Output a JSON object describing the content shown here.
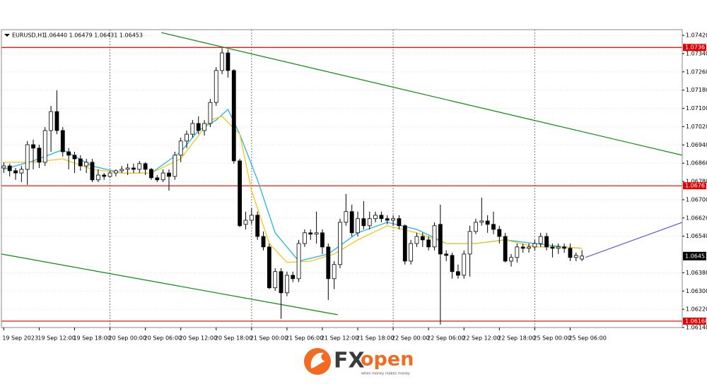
{
  "header": {
    "symbol": "EURUSD,H1",
    "quote": "1.06440 1.06479 1.06431 1.06453"
  },
  "chart_data": {
    "type": "candlestick",
    "open": [
      1.06839,
      1.06848,
      1.06827,
      1.06817,
      1.06833,
      1.06941,
      1.06926,
      1.06864,
      1.07003,
      1.07086,
      1.07003,
      1.0691,
      1.06895,
      1.06879,
      1.06848,
      1.06864,
      1.06787,
      1.06808,
      1.06802,
      1.06817,
      1.06827,
      1.06833,
      1.06839,
      1.06833,
      1.06858,
      1.06833,
      1.06796,
      1.06787,
      1.06817,
      1.06802,
      1.06895,
      1.06957,
      1.06987,
      1.07034,
      1.07003,
      1.07034,
      1.07126,
      1.07266,
      1.07343,
      1.07266,
      1.0687,
      1.06592,
      1.0661,
      1.06632,
      1.06539,
      1.06493,
      1.06314,
      1.06385,
      1.06292,
      1.06369,
      1.06354,
      1.06508,
      1.06555,
      1.06549,
      1.06555,
      1.06493,
      1.06354,
      1.06416,
      1.06601,
      1.06648,
      1.06555,
      1.06617,
      1.06586,
      1.06617,
      1.06632,
      1.06617,
      1.0661,
      1.06617,
      1.06586,
      1.06431,
      1.06508,
      1.06539,
      1.06524,
      1.06493,
      1.06592,
      1.06462,
      1.06456,
      1.06385,
      1.06369,
      1.06462,
      1.06561,
      1.06601,
      1.06607,
      1.06592,
      1.0657,
      1.06539,
      1.06431,
      1.06447,
      1.06493,
      1.06487,
      1.06493,
      1.06508,
      1.06539,
      1.06493,
      1.06487,
      1.06493,
      1.06487,
      1.06447,
      1.0644
    ],
    "high": [
      1.06864,
      1.06858,
      1.06839,
      1.06848,
      1.06957,
      1.06963,
      1.06941,
      1.07018,
      1.07111,
      1.07179,
      1.07018,
      1.06926,
      1.0691,
      1.06895,
      1.06879,
      1.06879,
      1.06833,
      1.06817,
      1.06827,
      1.06833,
      1.06848,
      1.06858,
      1.06858,
      1.0687,
      1.06864,
      1.06839,
      1.06808,
      1.06833,
      1.06833,
      1.0691,
      1.06972,
      1.07003,
      1.07049,
      1.07065,
      1.07049,
      1.07142,
      1.07281,
      1.07364,
      1.07358,
      1.07272,
      1.06879,
      1.06648,
      1.06663,
      1.06648,
      1.06561,
      1.06508,
      1.064,
      1.064,
      1.06385,
      1.06385,
      1.06524,
      1.0657,
      1.0657,
      1.06648,
      1.0657,
      1.06508,
      1.06431,
      1.06617,
      1.06725,
      1.06678,
      1.06648,
      1.06694,
      1.06648,
      1.06648,
      1.06648,
      1.06632,
      1.06632,
      1.06632,
      1.06592,
      1.06524,
      1.06555,
      1.06555,
      1.06539,
      1.06601,
      1.06678,
      1.06478,
      1.06468,
      1.06416,
      1.06478,
      1.06586,
      1.06617,
      1.06709,
      1.06632,
      1.06648,
      1.06586,
      1.06555,
      1.06462,
      1.06508,
      1.06508,
      1.06508,
      1.06524,
      1.06555,
      1.06555,
      1.06508,
      1.06508,
      1.06508,
      1.06508,
      1.06468,
      1.06479
    ],
    "low": [
      1.06817,
      1.06802,
      1.06787,
      1.06777,
      1.06765,
      1.06833,
      1.06839,
      1.06848,
      1.0691,
      1.06987,
      1.06889,
      1.06833,
      1.06817,
      1.06827,
      1.06817,
      1.06777,
      1.06777,
      1.06787,
      1.06796,
      1.06802,
      1.06817,
      1.06808,
      1.06817,
      1.06817,
      1.06808,
      1.06787,
      1.06777,
      1.06777,
      1.0674,
      1.06787,
      1.06864,
      1.06926,
      1.06972,
      1.06987,
      1.06981,
      1.07018,
      1.07111,
      1.0725,
      1.07235,
      1.06858,
      1.0658,
      1.0657,
      1.06592,
      1.06524,
      1.06478,
      1.06308,
      1.06301,
      1.06178,
      1.06277,
      1.06339,
      1.06339,
      1.06493,
      1.06524,
      1.06508,
      1.06462,
      1.06261,
      1.06308,
      1.064,
      1.06586,
      1.06539,
      1.06539,
      1.0657,
      1.0657,
      1.06601,
      1.06601,
      1.06592,
      1.06586,
      1.0657,
      1.06416,
      1.06416,
      1.06493,
      1.06493,
      1.06478,
      1.06478,
      1.06153,
      1.06431,
      1.06354,
      1.06354,
      1.06354,
      1.06363,
      1.06549,
      1.06586,
      1.06555,
      1.06549,
      1.06508,
      1.06425,
      1.06407,
      1.06425,
      1.06468,
      1.06468,
      1.06478,
      1.06493,
      1.06478,
      1.06447,
      1.06462,
      1.06468,
      1.06431,
      1.06431,
      1.06431
    ],
    "close": [
      1.06848,
      1.06827,
      1.06817,
      1.06833,
      1.06941,
      1.06926,
      1.06864,
      1.07003,
      1.07086,
      1.07003,
      1.0691,
      1.06895,
      1.06879,
      1.06848,
      1.06864,
      1.06787,
      1.06808,
      1.06802,
      1.06817,
      1.06827,
      1.06833,
      1.06839,
      1.06833,
      1.06858,
      1.06833,
      1.06796,
      1.06787,
      1.06817,
      1.06802,
      1.06895,
      1.06957,
      1.06987,
      1.07034,
      1.07003,
      1.07034,
      1.07126,
      1.07266,
      1.07343,
      1.07266,
      1.0687,
      1.06586,
      1.0661,
      1.06632,
      1.06539,
      1.06493,
      1.06314,
      1.06385,
      1.06292,
      1.06369,
      1.06354,
      1.06508,
      1.06555,
      1.06549,
      1.06555,
      1.06493,
      1.06354,
      1.06416,
      1.06601,
      1.06648,
      1.06555,
      1.06617,
      1.06586,
      1.06617,
      1.06632,
      1.06617,
      1.0661,
      1.06617,
      1.06586,
      1.06431,
      1.06508,
      1.06539,
      1.06524,
      1.06493,
      1.06586,
      1.06462,
      1.06456,
      1.06385,
      1.06369,
      1.06462,
      1.06561,
      1.06601,
      1.06607,
      1.06592,
      1.0657,
      1.06539,
      1.06431,
      1.06447,
      1.06493,
      1.06487,
      1.06493,
      1.06508,
      1.06539,
      1.06493,
      1.06487,
      1.06493,
      1.06487,
      1.06447,
      1.06456,
      1.06453
    ],
    "up_color": "#ffffff",
    "down_color": "#000000",
    "edge_color": "#000000",
    "ylim": [
      1.0614,
      1.07445
    ],
    "yticks": [
      {
        "value": 1.0742,
        "label": "1.07420"
      },
      {
        "value": 1.0734,
        "label": "1.07340"
      },
      {
        "value": 1.0726,
        "label": "1.07260"
      },
      {
        "value": 1.0718,
        "label": "1.07180"
      },
      {
        "value": 1.071,
        "label": "1.07100"
      },
      {
        "value": 1.0702,
        "label": "1.07020"
      },
      {
        "value": 1.0694,
        "label": "1.06940"
      },
      {
        "value": 1.0686,
        "label": "1.06860"
      },
      {
        "value": 1.0678,
        "label": "1.06780"
      },
      {
        "value": 1.067,
        "label": "1.06700"
      },
      {
        "value": 1.0662,
        "label": "1.06620"
      },
      {
        "value": 1.0654,
        "label": "1.06540"
      },
      {
        "value": 1.0638,
        "label": "1.06380"
      },
      {
        "value": 1.063,
        "label": "1.06300"
      },
      {
        "value": 1.0622,
        "label": "1.06220"
      },
      {
        "value": 1.0614,
        "label": "1.06140"
      }
    ],
    "xlim": [
      -0.4,
      115
    ],
    "xticks": [
      {
        "value": 0,
        "label": "19 Sep 2023"
      },
      {
        "value": 6,
        "label": "19 Sep 12:00"
      },
      {
        "value": 12,
        "label": "19 Sep 18:00"
      },
      {
        "value": 18,
        "label": "20 Sep 00:00"
      },
      {
        "value": 24,
        "label": "20 Sep 06:00"
      },
      {
        "value": 30,
        "label": "20 Sep 12:00"
      },
      {
        "value": 36,
        "label": "20 Sep 18:00"
      },
      {
        "value": 42,
        "label": "21 Sep 00:00"
      },
      {
        "value": 48,
        "label": "21 Sep 06:00"
      },
      {
        "value": 54,
        "label": "21 Sep 12:00"
      },
      {
        "value": 60,
        "label": "21 Sep 18:00"
      },
      {
        "value": 66,
        "label": "22 Sep 00:00"
      },
      {
        "value": 72,
        "label": "22 Sep 06:00"
      },
      {
        "value": 78,
        "label": "22 Sep 12:00"
      },
      {
        "value": 84,
        "label": "22 Sep 18:00"
      },
      {
        "value": 90,
        "label": "25 Sep 00:00"
      },
      {
        "value": 96,
        "label": "25 Sep 06:00"
      }
    ],
    "xgrid": [
      18,
      42,
      66,
      90
    ],
    "grid": true,
    "series": [
      {
        "color": "#1eb4e6",
        "x": [
          0,
          5,
          10,
          15,
          20,
          25,
          30,
          33,
          36,
          38,
          40,
          43,
          46,
          50,
          55,
          60,
          65,
          70,
          75,
          80,
          85,
          90,
          95,
          98
        ],
        "values": [
          1.06833,
          1.0687,
          1.06919,
          1.06848,
          1.06817,
          1.06817,
          1.0691,
          1.07003,
          1.07049,
          1.07096,
          1.06987,
          1.06787,
          1.06555,
          1.06431,
          1.06462,
          1.06555,
          1.06601,
          1.0657,
          1.06508,
          1.06508,
          1.06524,
          1.06508,
          1.06493,
          1.06487
        ]
      },
      {
        "color": "#f5c518",
        "x": [
          0,
          5,
          10,
          15,
          20,
          25,
          30,
          35,
          37,
          40,
          42,
          45,
          48,
          52,
          56,
          60,
          65,
          70,
          75,
          80,
          85,
          90,
          95,
          98
        ],
        "values": [
          1.06864,
          1.06864,
          1.06879,
          1.06833,
          1.06817,
          1.06817,
          1.06879,
          1.07049,
          1.07065,
          1.06987,
          1.0674,
          1.06508,
          1.06425,
          1.06431,
          1.06462,
          1.06524,
          1.06586,
          1.06555,
          1.06508,
          1.06508,
          1.06524,
          1.06493,
          1.06493,
          1.06487
        ]
      }
    ],
    "levels": [
      {
        "value": 1.07367,
        "color": "#e00000"
      },
      {
        "value": 1.06761,
        "color": "#e00000"
      },
      {
        "value": 1.06168,
        "color": "#e00000"
      }
    ],
    "trendlines": [
      {
        "color": "#0a8a0a",
        "x": [
          26.7,
          115
        ],
        "y": [
          1.07432,
          1.06895
        ]
      },
      {
        "color": "#0a8a0a",
        "x": [
          -0.4,
          56.6
        ],
        "y": [
          1.06462,
          1.06196
        ]
      },
      {
        "color": "#5a5ad2",
        "x": [
          98.6,
          115
        ],
        "y": [
          1.06447,
          1.06601
        ]
      }
    ],
    "last_price": 1.06453
  },
  "brand": {
    "fx": "FX",
    "open": "open",
    "tagline": "when money makes money"
  }
}
